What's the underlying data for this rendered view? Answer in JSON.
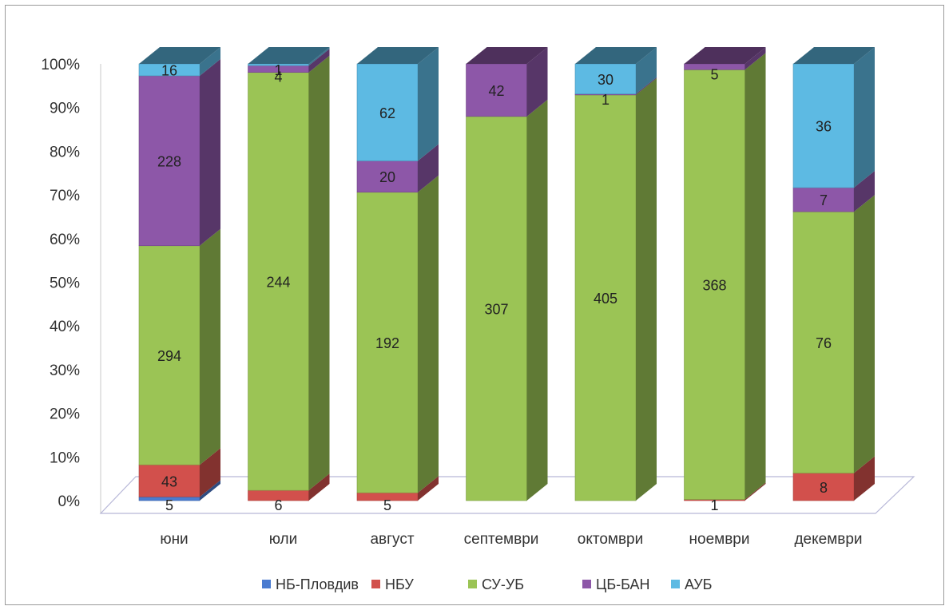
{
  "chart_data": {
    "type": "bar",
    "stacked": true,
    "normalized": true,
    "three_d": true,
    "categories": [
      "юни",
      "юли",
      "август",
      "септември",
      "октомври",
      "ноември",
      "декември"
    ],
    "series": [
      {
        "name": "НБ-Пловдив",
        "color": "#4a7bd0",
        "values": [
          5,
          0,
          0,
          0,
          0,
          0,
          0
        ]
      },
      {
        "name": "НБУ",
        "color": "#d2504c",
        "values": [
          43,
          6,
          5,
          0,
          0,
          1,
          8
        ]
      },
      {
        "name": "СУ-УБ",
        "color": "#9bc455",
        "values": [
          294,
          244,
          192,
          307,
          405,
          368,
          76
        ]
      },
      {
        "name": "ЦБ-БАН",
        "color": "#8d57a8",
        "values": [
          228,
          4,
          20,
          42,
          1,
          5,
          7
        ]
      },
      {
        "name": "АУБ",
        "color": "#5dbae3",
        "values": [
          16,
          1,
          62,
          0,
          30,
          0,
          36
        ]
      }
    ],
    "y_ticks": [
      "0%",
      "10%",
      "20%",
      "30%",
      "40%",
      "50%",
      "60%",
      "70%",
      "80%",
      "90%",
      "100%"
    ],
    "ylim": [
      0,
      100
    ],
    "legend_position": "bottom",
    "title": "",
    "xlabel": "",
    "ylabel": ""
  }
}
